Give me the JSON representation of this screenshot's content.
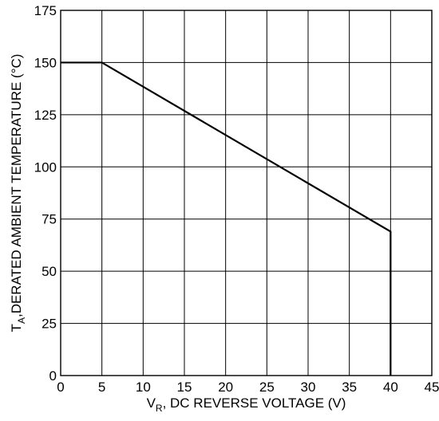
{
  "chart_data": {
    "type": "line",
    "xlabel": {
      "main": "V",
      "sub": "R",
      "rest": ", DC REVERSE VOLTAGE (V)"
    },
    "ylabel": {
      "main": "T",
      "sub": "A",
      "rest": ",DERATED AMBIENT TEMPERATURE (°C)"
    },
    "xlim": [
      0,
      45
    ],
    "ylim": [
      0,
      175
    ],
    "xticks": [
      0,
      5,
      10,
      15,
      20,
      25,
      30,
      35,
      40,
      45
    ],
    "yticks": [
      0,
      25,
      50,
      75,
      100,
      125,
      150,
      175
    ],
    "grid": true,
    "series": [
      {
        "x": [
          0,
          5,
          40,
          40
        ],
        "y": [
          150,
          150,
          69,
          0
        ]
      }
    ]
  }
}
